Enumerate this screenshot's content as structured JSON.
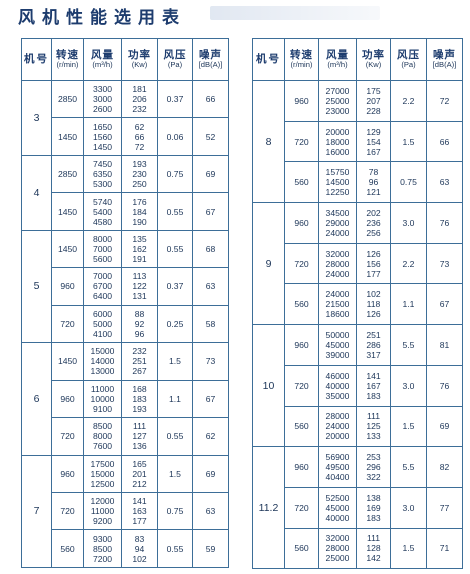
{
  "title": "风机性能选用表",
  "headers": {
    "model": "机号",
    "speed": "转速",
    "speed_unit": "(r/min)",
    "flow": "风量",
    "flow_unit": "(m³/h)",
    "power": "功率",
    "power_unit": "(Kw)",
    "pressure": "风压",
    "pressure_unit": "(Pa)",
    "noise": "噪声",
    "noise_unit": "[dB(A)]"
  },
  "left_table": [
    {
      "model": "3",
      "rows": [
        {
          "speed": "2850",
          "flow": [
            "3300",
            "3000",
            "2600"
          ],
          "power": [
            "181",
            "206",
            "232"
          ],
          "pressure": "0.37",
          "noise": "66"
        },
        {
          "speed": "1450",
          "flow": [
            "1650",
            "1560",
            "1450"
          ],
          "power": [
            "62",
            "66",
            "72"
          ],
          "pressure": "0.06",
          "noise": "52"
        }
      ]
    },
    {
      "model": "4",
      "rows": [
        {
          "speed": "2850",
          "flow": [
            "7450",
            "6350",
            "5300"
          ],
          "power": [
            "193",
            "230",
            "250"
          ],
          "pressure": "0.75",
          "noise": "69"
        },
        {
          "speed": "1450",
          "flow": [
            "5740",
            "5400",
            "4580"
          ],
          "power": [
            "176",
            "184",
            "190"
          ],
          "pressure": "0.55",
          "noise": "67"
        }
      ]
    },
    {
      "model": "5",
      "rows": [
        {
          "speed": "1450",
          "flow": [
            "8000",
            "7000",
            "5600"
          ],
          "power": [
            "135",
            "162",
            "191"
          ],
          "pressure": "0.55",
          "noise": "68"
        },
        {
          "speed": "960",
          "flow": [
            "7000",
            "6700",
            "6400"
          ],
          "power": [
            "113",
            "122",
            "131"
          ],
          "pressure": "0.37",
          "noise": "63"
        },
        {
          "speed": "720",
          "flow": [
            "6000",
            "5000",
            "4100"
          ],
          "power": [
            "88",
            "92",
            "96"
          ],
          "pressure": "0.25",
          "noise": "58"
        }
      ]
    },
    {
      "model": "6",
      "rows": [
        {
          "speed": "1450",
          "flow": [
            "15000",
            "14000",
            "13000"
          ],
          "power": [
            "232",
            "251",
            "267"
          ],
          "pressure": "1.5",
          "noise": "73"
        },
        {
          "speed": "960",
          "flow": [
            "11000",
            "10000",
            "9100"
          ],
          "power": [
            "168",
            "183",
            "193"
          ],
          "pressure": "1.1",
          "noise": "67"
        },
        {
          "speed": "720",
          "flow": [
            "8500",
            "8000",
            "7600"
          ],
          "power": [
            "111",
            "127",
            "136"
          ],
          "pressure": "0.55",
          "noise": "62"
        }
      ]
    },
    {
      "model": "7",
      "rows": [
        {
          "speed": "960",
          "flow": [
            "17500",
            "15000",
            "12500"
          ],
          "power": [
            "165",
            "201",
            "212"
          ],
          "pressure": "1.5",
          "noise": "69"
        },
        {
          "speed": "720",
          "flow": [
            "12000",
            "11000",
            "9200"
          ],
          "power": [
            "141",
            "163",
            "177"
          ],
          "pressure": "0.75",
          "noise": "63"
        },
        {
          "speed": "560",
          "flow": [
            "9300",
            "8500",
            "7200"
          ],
          "power": [
            "83",
            "94",
            "102"
          ],
          "pressure": "0.55",
          "noise": "59"
        }
      ]
    }
  ],
  "right_table": [
    {
      "model": "8",
      "rows": [
        {
          "speed": "960",
          "flow": [
            "27000",
            "25000",
            "23000"
          ],
          "power": [
            "175",
            "207",
            "228"
          ],
          "pressure": "2.2",
          "noise": "72"
        },
        {
          "speed": "720",
          "flow": [
            "20000",
            "18000",
            "16000"
          ],
          "power": [
            "129",
            "154",
            "167"
          ],
          "pressure": "1.5",
          "noise": "66"
        },
        {
          "speed": "560",
          "flow": [
            "15750",
            "14500",
            "12250"
          ],
          "power": [
            "78",
            "96",
            "121"
          ],
          "pressure": "0.75",
          "noise": "63"
        }
      ]
    },
    {
      "model": "9",
      "rows": [
        {
          "speed": "960",
          "flow": [
            "34500",
            "29000",
            "24000"
          ],
          "power": [
            "202",
            "236",
            "256"
          ],
          "pressure": "3.0",
          "noise": "76"
        },
        {
          "speed": "720",
          "flow": [
            "32000",
            "28000",
            "24000"
          ],
          "power": [
            "126",
            "156",
            "177"
          ],
          "pressure": "2.2",
          "noise": "73"
        },
        {
          "speed": "560",
          "flow": [
            "24000",
            "21500",
            "18600"
          ],
          "power": [
            "102",
            "118",
            "126"
          ],
          "pressure": "1.1",
          "noise": "67"
        }
      ]
    },
    {
      "model": "10",
      "rows": [
        {
          "speed": "960",
          "flow": [
            "50000",
            "45000",
            "39000"
          ],
          "power": [
            "251",
            "286",
            "317"
          ],
          "pressure": "5.5",
          "noise": "81"
        },
        {
          "speed": "720",
          "flow": [
            "46000",
            "40000",
            "35000"
          ],
          "power": [
            "141",
            "167",
            "183"
          ],
          "pressure": "3.0",
          "noise": "76"
        },
        {
          "speed": "560",
          "flow": [
            "28000",
            "24000",
            "20000"
          ],
          "power": [
            "111",
            "125",
            "133"
          ],
          "pressure": "1.5",
          "noise": "69"
        }
      ]
    },
    {
      "model": "11.2",
      "rows": [
        {
          "speed": "960",
          "flow": [
            "56900",
            "49500",
            "40400"
          ],
          "power": [
            "253",
            "296",
            "322"
          ],
          "pressure": "5.5",
          "noise": "82"
        },
        {
          "speed": "720",
          "flow": [
            "52500",
            "45000",
            "40000"
          ],
          "power": [
            "138",
            "169",
            "183"
          ],
          "pressure": "3.0",
          "noise": "77"
        },
        {
          "speed": "560",
          "flow": [
            "32000",
            "28000",
            "25000"
          ],
          "power": [
            "111",
            "128",
            "142"
          ],
          "pressure": "1.5",
          "noise": "71"
        }
      ]
    }
  ]
}
